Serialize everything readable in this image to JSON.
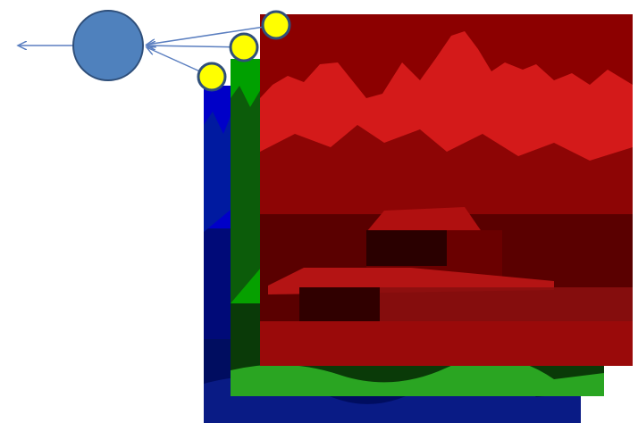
{
  "diagram": {
    "description_label": "RGB channel layers feeding a single neuron",
    "colors": {
      "neuron_fill": "#4f81bd",
      "neuron_stroke": "#2f4f7a",
      "arrow": "#5b7fc0",
      "channel_dot_fill": "#ffff00",
      "channel_dot_stroke": "#2f4f7a",
      "background": "#ffffff"
    },
    "channels": [
      {
        "name": "blue",
        "layer_color": "#000a78",
        "sky_color": "#0000c8",
        "mountain_color": "#001aa0",
        "ground_color": "#000d60",
        "grass_color": "#0a1e8c"
      },
      {
        "name": "green",
        "layer_color": "#06a000",
        "sky_color": "#00a000",
        "mountain_color": "#0c5c0a",
        "ground_color": "#0a3a08",
        "grass_color": "#2aa522"
      },
      {
        "name": "red",
        "layer_color": "#8c0000",
        "sky_color": "#8c0000",
        "mountain_color": "#d41a1a",
        "ground_color": "#5a0000",
        "grass_color": "#9a0a0a"
      }
    ]
  }
}
